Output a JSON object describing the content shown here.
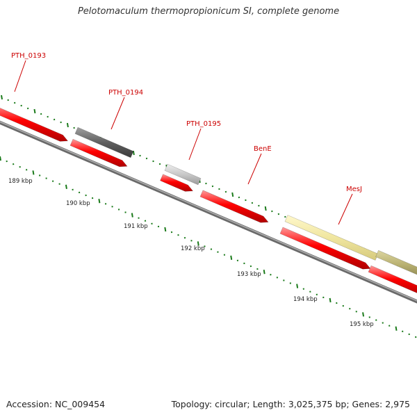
{
  "header": {
    "title": "Pelotomaculum thermopropionicum SI, complete genome"
  },
  "footer": {
    "accession": "Accession: NC_009454",
    "stats": "Topology: circular; Length: 3,025,375 bp; Genes: 2,975"
  },
  "colors": {
    "strand_forward": "#ff0000",
    "backbone": "#8a8a8a",
    "tick": "#1a7a1a",
    "label": "#cc0000"
  },
  "axis": {
    "unit": "kbp",
    "tick_labels": [
      "189 kbp",
      "190 kbp",
      "191 kbp",
      "192 kbp",
      "193 kbp",
      "194 kbp",
      "195 kbp"
    ]
  },
  "genes": [
    {
      "label": "PTH_0193",
      "strand": "forward",
      "color": "#ff0000"
    },
    {
      "label": "PTH_0194",
      "strand": "both",
      "color": "#606060"
    },
    {
      "label": "PTH_0195",
      "strand": "both",
      "color": "#c8c8c8"
    },
    {
      "label": "BenE",
      "strand": "forward",
      "color": "#ff0000"
    },
    {
      "label": "MesJ",
      "strand": "both",
      "color": "#f0e6a0"
    },
    {
      "label": "",
      "strand": "both",
      "color": "#b8b070"
    }
  ]
}
